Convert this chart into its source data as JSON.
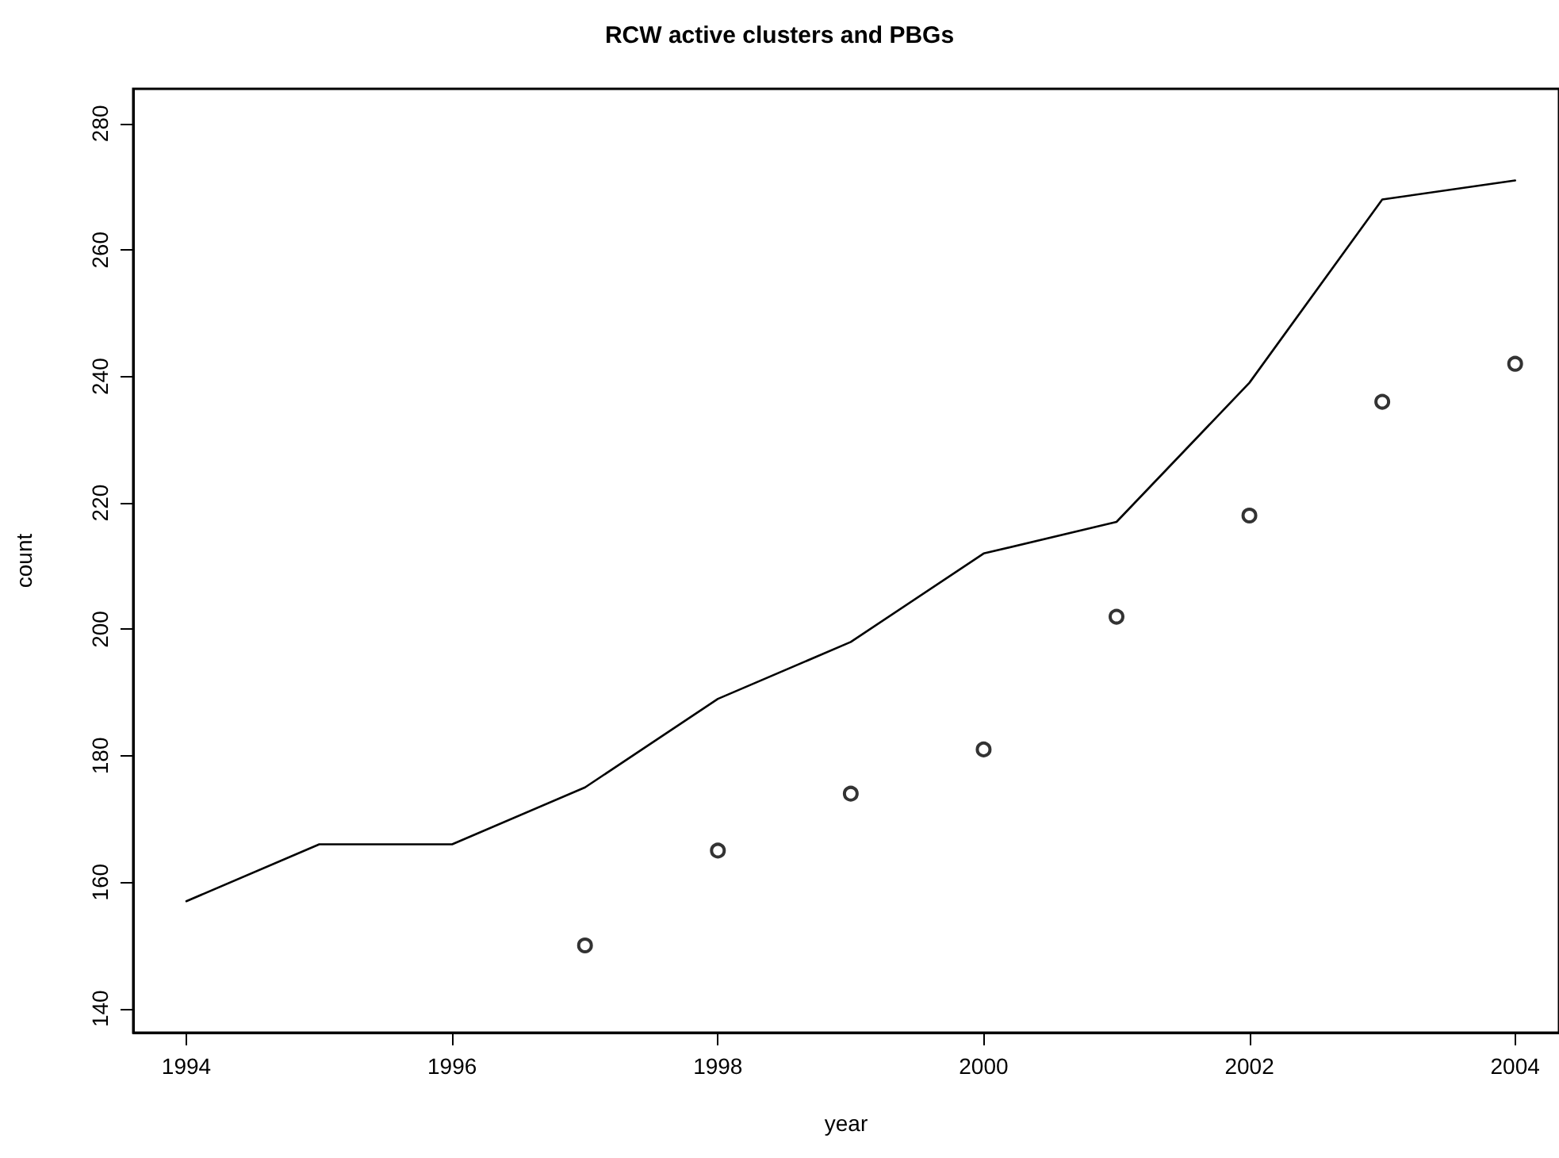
{
  "chart_data": {
    "type": "line",
    "title": "RCW active clusters and PBGs",
    "xlabel": "year",
    "ylabel": "count",
    "x": [
      1994,
      1995,
      1996,
      1997,
      1998,
      1999,
      2000,
      2001,
      2002,
      2003,
      2004
    ],
    "series": [
      {
        "color": "#000000",
        "marker": "none",
        "line_style": "solid",
        "values": [
          157,
          166,
          166,
          175,
          189,
          198,
          212,
          217,
          239,
          268,
          271
        ]
      },
      {
        "type": "scatter",
        "color": "#000000",
        "marker": "circle",
        "x": [
          1997,
          1998,
          1999,
          2000,
          2001,
          2002,
          2003,
          2004
        ],
        "values": [
          150,
          165,
          174,
          181,
          202,
          218,
          236,
          242
        ]
      }
    ],
    "xlim": [
      1993.6,
      2004.33
    ],
    "xticks": [
      1994,
      1996,
      1998,
      2000,
      2002,
      2004
    ],
    "ylim": [
      136.2,
      285.5
    ],
    "yticks": [
      140,
      160,
      180,
      200,
      220,
      240,
      260,
      280
    ],
    "grid": false
  }
}
